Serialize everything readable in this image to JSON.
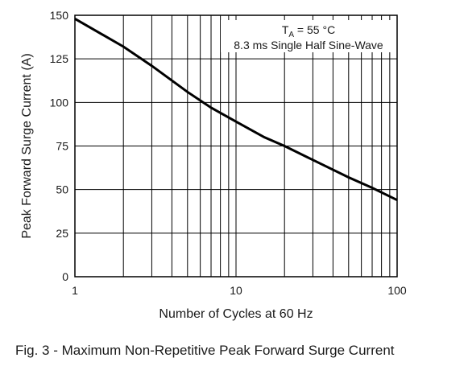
{
  "chart_data": {
    "type": "line",
    "xscale": "log",
    "xlim": [
      1,
      100
    ],
    "ylim": [
      0,
      150
    ],
    "xticks": [
      "1",
      "10",
      "100"
    ],
    "yticks": [
      "0",
      "25",
      "50",
      "75",
      "100",
      "125",
      "150"
    ],
    "xlabel": "Number of Cycles at 60 Hz",
    "ylabel": "Peak Forward Surge Current (A)",
    "grid": true,
    "annotation": {
      "line1_prefix": "T",
      "line1_sub": "A",
      "line1_suffix": " = 55 °C",
      "line2": "8.3 ms Single Half Sine-Wave"
    },
    "series": [
      {
        "x": [
          1,
          2,
          3,
          5,
          7,
          10,
          15,
          20,
          30,
          50,
          70,
          100
        ],
        "y": [
          148,
          132,
          121,
          106,
          97,
          89,
          80,
          75,
          67,
          57,
          51,
          44
        ]
      }
    ],
    "color": "#000000"
  },
  "caption": "Fig. 3 - Maximum Non-Repetitive Peak Forward Surge Current"
}
